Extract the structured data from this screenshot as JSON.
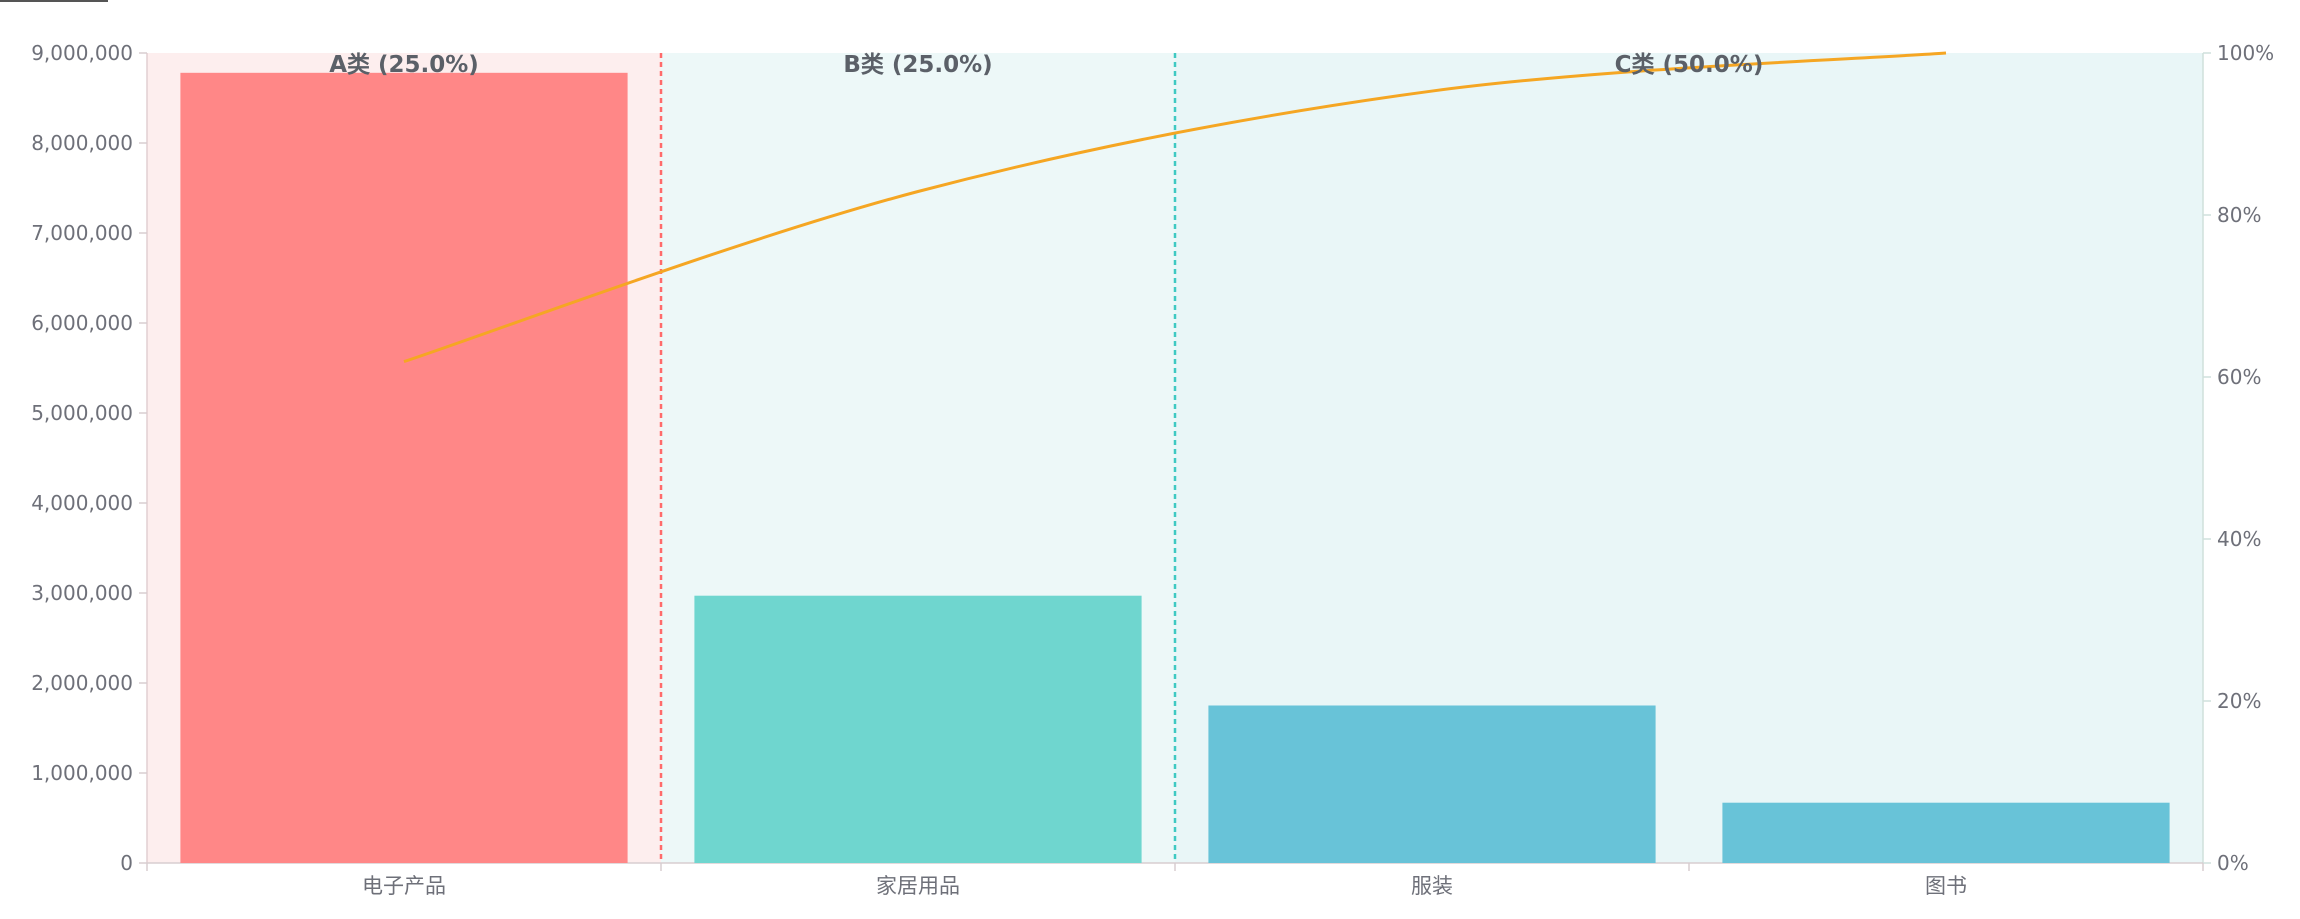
{
  "chart_data": {
    "type": "bar",
    "categories": [
      "电子产品",
      "家居用品",
      "服装",
      "图书"
    ],
    "series": [
      {
        "type": "bar",
        "values": [
          8780000,
          2970000,
          1750000,
          670000
        ]
      },
      {
        "type": "line",
        "axis": "right",
        "values": [
          61.9,
          82.9,
          95.3,
          100.0
        ]
      }
    ],
    "bar_colors": [
      "#ff8787",
      "#6fd6cf",
      "#68c3d8",
      "#68c3d8"
    ],
    "line_color": "#f5a623",
    "left_axis": {
      "min": 0,
      "max": 9000000,
      "ticks": [
        0,
        1000000,
        2000000,
        3000000,
        4000000,
        5000000,
        6000000,
        7000000,
        8000000,
        9000000
      ],
      "tick_labels": [
        "0",
        "1,000,000",
        "2,000,000",
        "3,000,000",
        "4,000,000",
        "5,000,000",
        "6,000,000",
        "7,000,000",
        "8,000,000",
        "9,000,000"
      ]
    },
    "right_axis": {
      "min": 0,
      "max": 100,
      "ticks": [
        0,
        20,
        40,
        60,
        80,
        100
      ],
      "tick_labels": [
        "0%",
        "20%",
        "40%",
        "60%",
        "80%",
        "100%"
      ]
    },
    "zones": [
      {
        "label": "A类 (25.0%)",
        "start": 0,
        "end": 1,
        "fill": "#fdeeee",
        "boundary_color": "#ff6b6b"
      },
      {
        "label": "B类 (25.0%)",
        "start": 1,
        "end": 2,
        "fill": "#edf8f8",
        "boundary_color": "#3fc9c2"
      },
      {
        "label": "C类 (50.0%)",
        "start": 2,
        "end": 4,
        "fill": "#e9f6f7",
        "boundary_color": null
      }
    ]
  }
}
